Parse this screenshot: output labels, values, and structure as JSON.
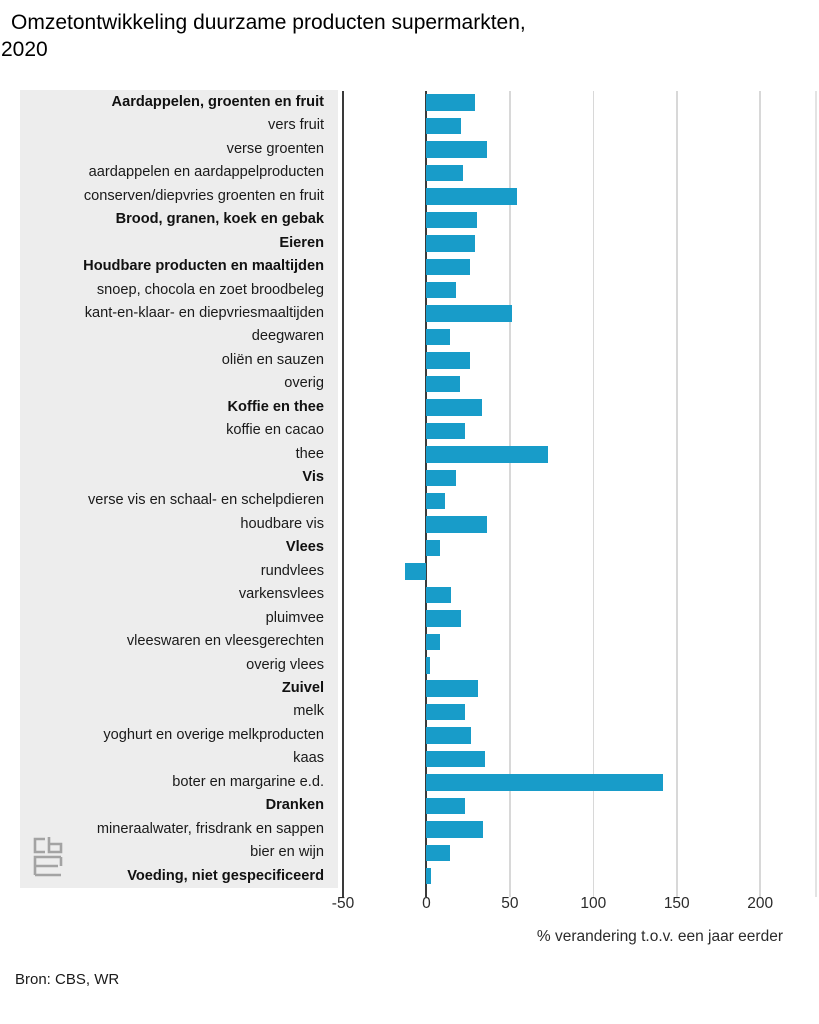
{
  "title": {
    "line1": "Omzetontwikkeling duurzame producten supermarkten,",
    "line2": "2020"
  },
  "source": "Bron: CBS, WR",
  "logo": "cbs-logo",
  "colors": {
    "bar": "#189cc9",
    "panel_background": "#ededed",
    "axis_dark": "#3a3a3a",
    "gridline": "#d8d8d8",
    "text": "#1a1a1a"
  },
  "chart_data": {
    "type": "bar",
    "orientation": "horizontal",
    "title": "Omzetontwikkeling duurzame producten supermarkten, 2020",
    "xlabel": "% verandering t.o.v. een jaar eerder",
    "xlim": [
      -50,
      233
    ],
    "x_ticks": [
      -50,
      0,
      50,
      100,
      150,
      200
    ],
    "grid": "vertical",
    "legend": "none",
    "categories": [
      "Aardappelen, groenten en fruit",
      "vers fruit",
      "verse groenten",
      "aardappelen en aardappelproducten",
      "conserven/diepvries groenten en fruit",
      "Brood, granen, koek en gebak",
      "Eieren",
      "Houdbare producten en maaltijden",
      "snoep, chocola en zoet broodbeleg",
      "kant-en-klaar- en diepvriesmaaltijden",
      "deegwaren",
      "oliën en sauzen",
      "overig",
      "Koffie en thee",
      "koffie en cacao",
      "thee",
      "Vis",
      "verse vis en schaal- en schelpdieren",
      "houdbare vis",
      "Vlees",
      "rundvlees",
      "varkensvlees",
      "pluimvee",
      "vleeswaren en vleesgerechten",
      "overig vlees",
      "Zuivel",
      "melk",
      "yoghurt en overige melkproducten",
      "kaas",
      "boter en margarine e.d.",
      "Dranken",
      "mineraalwater, frisdrank en sappen",
      "bier en wijn",
      "Voeding, niet gespecificeerd"
    ],
    "values": [
      29,
      21,
      36,
      22,
      54,
      30,
      29,
      26,
      18,
      51,
      14,
      26,
      20,
      33,
      23,
      73,
      18,
      11,
      36,
      8,
      -13,
      15,
      21,
      8,
      2,
      31,
      23,
      27,
      35,
      142,
      23,
      34,
      14,
      3
    ],
    "bold_flags": [
      true,
      false,
      false,
      false,
      false,
      true,
      true,
      true,
      false,
      false,
      false,
      false,
      false,
      true,
      false,
      false,
      true,
      false,
      false,
      true,
      false,
      false,
      false,
      false,
      false,
      true,
      false,
      false,
      false,
      false,
      true,
      false,
      false,
      true
    ]
  }
}
